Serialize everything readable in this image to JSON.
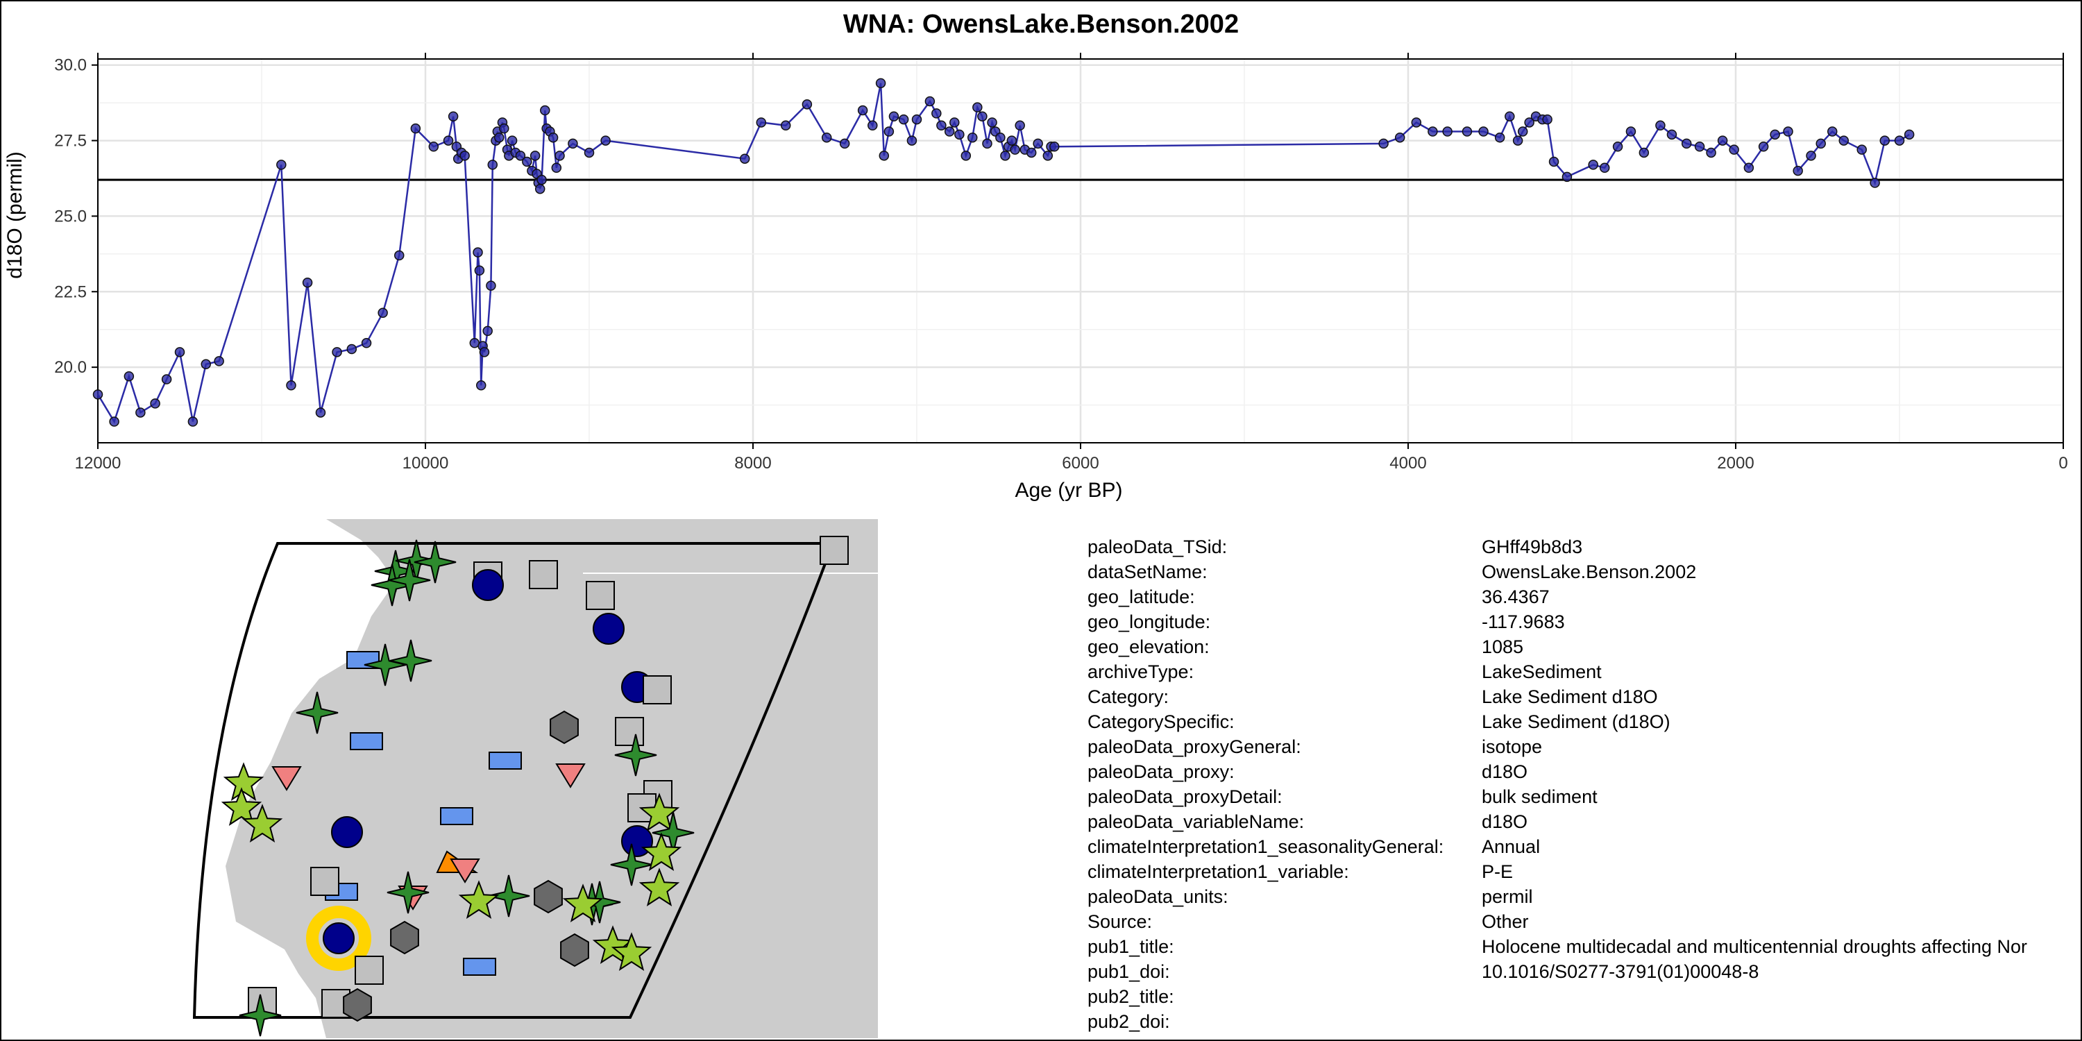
{
  "chart_data": {
    "type": "line",
    "title": "WNA: OwensLake.Benson.2002",
    "xlabel": "Age (yr BP)",
    "ylabel": "d18O (permil)",
    "xlim": [
      12000,
      0
    ],
    "ylim": [
      17.5,
      30.2
    ],
    "x_reversed": true,
    "xticks": [
      12000,
      10000,
      8000,
      6000,
      4000,
      2000,
      0
    ],
    "xtick_labels": [
      "12000",
      "10000",
      "8000",
      "6000",
      "4000",
      "2000",
      "0"
    ],
    "yticks": [
      20.0,
      22.5,
      25.0,
      27.5,
      30.0
    ],
    "ytick_labels": [
      "20.0",
      "22.5",
      "25.0",
      "27.5",
      "30.0"
    ],
    "grid": true,
    "reference_line": 26.2,
    "series": [
      {
        "color": "#2b2ba6",
        "points": [
          [
            12000,
            19.1
          ],
          [
            11900,
            18.2
          ],
          [
            11810,
            19.7
          ],
          [
            11740,
            18.5
          ],
          [
            11650,
            18.8
          ],
          [
            11580,
            19.6
          ],
          [
            11500,
            20.5
          ],
          [
            11420,
            18.2
          ],
          [
            11340,
            20.1
          ],
          [
            11260,
            20.2
          ],
          [
            10880,
            26.7
          ],
          [
            10820,
            19.4
          ],
          [
            10720,
            22.8
          ],
          [
            10640,
            18.5
          ],
          [
            10540,
            20.5
          ],
          [
            10450,
            20.6
          ],
          [
            10360,
            20.8
          ],
          [
            10260,
            21.8
          ],
          [
            10160,
            23.7
          ],
          [
            10060,
            27.9
          ],
          [
            9950,
            27.3
          ],
          [
            9860,
            27.5
          ],
          [
            9830,
            28.3
          ],
          [
            9810,
            27.3
          ],
          [
            9800,
            26.9
          ],
          [
            9780,
            27.1
          ],
          [
            9760,
            27.0
          ],
          [
            9700,
            20.8
          ],
          [
            9680,
            23.8
          ],
          [
            9670,
            23.2
          ],
          [
            9660,
            19.4
          ],
          [
            9650,
            20.7
          ],
          [
            9640,
            20.5
          ],
          [
            9620,
            21.2
          ],
          [
            9600,
            22.7
          ],
          [
            9590,
            26.7
          ],
          [
            9570,
            27.5
          ],
          [
            9560,
            27.8
          ],
          [
            9550,
            27.6
          ],
          [
            9530,
            28.1
          ],
          [
            9520,
            27.9
          ],
          [
            9500,
            27.2
          ],
          [
            9490,
            27.0
          ],
          [
            9470,
            27.5
          ],
          [
            9450,
            27.1
          ],
          [
            9420,
            27.0
          ],
          [
            9380,
            26.8
          ],
          [
            9350,
            26.5
          ],
          [
            9330,
            27.0
          ],
          [
            9320,
            26.4
          ],
          [
            9310,
            26.1
          ],
          [
            9300,
            25.9
          ],
          [
            9290,
            26.2
          ],
          [
            9270,
            28.5
          ],
          [
            9260,
            27.9
          ],
          [
            9240,
            27.8
          ],
          [
            9220,
            27.6
          ],
          [
            9200,
            26.6
          ],
          [
            9180,
            27.0
          ],
          [
            9100,
            27.4
          ],
          [
            9000,
            27.1
          ],
          [
            8900,
            27.5
          ],
          [
            8050,
            26.9
          ],
          [
            7950,
            28.1
          ],
          [
            7800,
            28.0
          ],
          [
            7670,
            28.7
          ],
          [
            7550,
            27.6
          ],
          [
            7440,
            27.4
          ],
          [
            7330,
            28.5
          ],
          [
            7270,
            28.0
          ],
          [
            7220,
            29.4
          ],
          [
            7200,
            27.0
          ],
          [
            7170,
            27.8
          ],
          [
            7140,
            28.3
          ],
          [
            7080,
            28.2
          ],
          [
            7030,
            27.5
          ],
          [
            7000,
            28.2
          ],
          [
            6920,
            28.8
          ],
          [
            6880,
            28.4
          ],
          [
            6850,
            28.0
          ],
          [
            6800,
            27.8
          ],
          [
            6770,
            28.1
          ],
          [
            6740,
            27.7
          ],
          [
            6700,
            27.0
          ],
          [
            6660,
            27.6
          ],
          [
            6630,
            28.6
          ],
          [
            6600,
            28.3
          ],
          [
            6570,
            27.4
          ],
          [
            6540,
            28.1
          ],
          [
            6520,
            27.8
          ],
          [
            6490,
            27.6
          ],
          [
            6460,
            27.0
          ],
          [
            6440,
            27.3
          ],
          [
            6420,
            27.5
          ],
          [
            6400,
            27.2
          ],
          [
            6370,
            28.0
          ],
          [
            6340,
            27.2
          ],
          [
            6300,
            27.1
          ],
          [
            6260,
            27.4
          ],
          [
            6200,
            27.0
          ],
          [
            6180,
            27.3
          ],
          [
            6160,
            27.3
          ],
          [
            4150,
            27.4
          ],
          [
            4050,
            27.6
          ],
          [
            3950,
            28.1
          ],
          [
            3850,
            27.8
          ],
          [
            3760,
            27.8
          ],
          [
            3640,
            27.8
          ],
          [
            3540,
            27.8
          ],
          [
            3440,
            27.6
          ],
          [
            3380,
            28.3
          ],
          [
            3330,
            27.5
          ],
          [
            3300,
            27.8
          ],
          [
            3260,
            28.1
          ],
          [
            3220,
            28.3
          ],
          [
            3180,
            28.2
          ],
          [
            3150,
            28.2
          ],
          [
            3110,
            26.8
          ],
          [
            3030,
            26.3
          ],
          [
            2870,
            26.7
          ],
          [
            2800,
            26.6
          ],
          [
            2720,
            27.3
          ],
          [
            2640,
            27.8
          ],
          [
            2560,
            27.1
          ],
          [
            2460,
            28.0
          ],
          [
            2390,
            27.7
          ],
          [
            2300,
            27.4
          ],
          [
            2220,
            27.3
          ],
          [
            2150,
            27.1
          ],
          [
            2080,
            27.5
          ],
          [
            2010,
            27.2
          ],
          [
            1920,
            26.6
          ],
          [
            1830,
            27.3
          ],
          [
            1760,
            27.7
          ],
          [
            1680,
            27.8
          ],
          [
            1620,
            26.5
          ],
          [
            1540,
            27.0
          ],
          [
            1480,
            27.4
          ],
          [
            1410,
            27.8
          ],
          [
            1340,
            27.5
          ],
          [
            1230,
            27.2
          ],
          [
            1150,
            26.1
          ],
          [
            1090,
            27.5
          ],
          [
            1000,
            27.5
          ],
          [
            940,
            27.7
          ]
        ]
      }
    ]
  },
  "map": {
    "land_color": "#cccccc",
    "ocean_color": "#ffffff",
    "highlight_color": "#ffd400",
    "markers": [
      {
        "shape": "star4",
        "color": "#2e8b2e",
        "count": 18
      },
      {
        "shape": "star5",
        "color": "#9acd32",
        "count": 10
      },
      {
        "shape": "circle",
        "color": "#00008b",
        "count": 7
      },
      {
        "shape": "square",
        "color": "#c0c0c0",
        "count": 12
      },
      {
        "shape": "rect",
        "color": "#6495ed",
        "count": 8
      },
      {
        "shape": "hexagon",
        "color": "#696969",
        "count": 7
      },
      {
        "shape": "triangle-down",
        "color": "#f08080",
        "count": 4
      },
      {
        "shape": "triangle",
        "color": "#ff8c00",
        "count": 1
      }
    ]
  },
  "metadata": [
    {
      "key": "paleoData_TSid:",
      "value": "GHff49b8d3"
    },
    {
      "key": "dataSetName:",
      "value": "OwensLake.Benson.2002"
    },
    {
      "key": "geo_latitude:",
      "value": "36.4367"
    },
    {
      "key": "geo_longitude:",
      "value": "-117.9683"
    },
    {
      "key": "geo_elevation:",
      "value": "1085"
    },
    {
      "key": "archiveType:",
      "value": "LakeSediment"
    },
    {
      "key": "Category:",
      "value": "Lake Sediment d18O"
    },
    {
      "key": "CategorySpecific:",
      "value": "Lake Sediment (d18O)"
    },
    {
      "key": "paleoData_proxyGeneral:",
      "value": "isotope"
    },
    {
      "key": "paleoData_proxy:",
      "value": "d18O"
    },
    {
      "key": "paleoData_proxyDetail:",
      "value": "bulk sediment"
    },
    {
      "key": "paleoData_variableName:",
      "value": "d18O"
    },
    {
      "key": "climateInterpretation1_seasonalityGeneral:",
      "value": "Annual"
    },
    {
      "key": "climateInterpretation1_variable:",
      "value": "P-E"
    },
    {
      "key": "paleoData_units:",
      "value": "permil"
    },
    {
      "key": "Source:",
      "value": "Other"
    },
    {
      "key": "pub1_title:",
      "value": "Holocene multidecadal and multicentennial droughts affecting Nor"
    },
    {
      "key": "pub1_doi:",
      "value": "10.1016/S0277-3791(01)00048-8"
    },
    {
      "key": "pub2_title:",
      "value": ""
    },
    {
      "key": "pub2_doi:",
      "value": ""
    }
  ]
}
